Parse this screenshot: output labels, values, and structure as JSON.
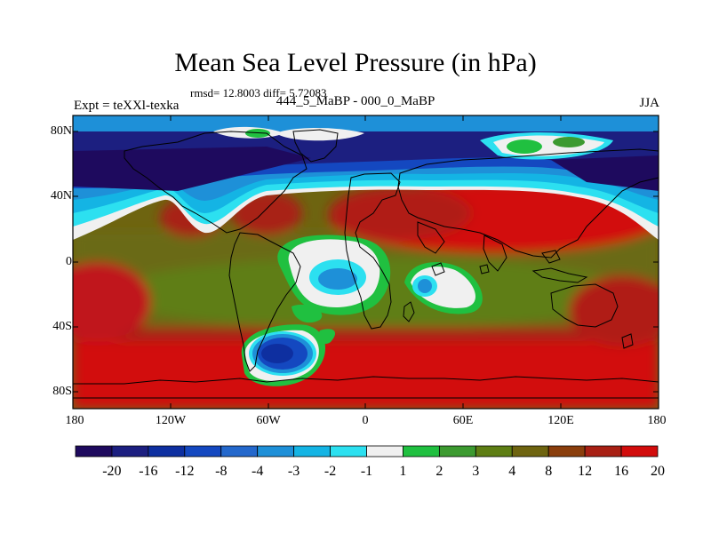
{
  "title": "Mean Sea Level Pressure (in hPa)",
  "stats_line": "rmsd= 12.8003 diff= 5.72083",
  "experiment_label": "Expt = teXXl-texka",
  "subtitle": "444_5_MaBP - 000_0_MaBP",
  "season": "JJA",
  "map": {
    "lat_ticks": [
      "80N",
      "40N",
      "0",
      "40S",
      "80S"
    ],
    "lon_ticks": [
      "180",
      "120W",
      "60W",
      "0",
      "60E",
      "120E",
      "180"
    ]
  },
  "colorbar": {
    "labels": [
      "-20",
      "-16",
      "-12",
      "-8",
      "-4",
      "-3",
      "-2",
      "-1",
      "1",
      "2",
      "3",
      "4",
      "8",
      "12",
      "16",
      "20"
    ],
    "colors": [
      "#1e0a5e",
      "#1c1f80",
      "#0e2fa0",
      "#1448c0",
      "#2468cc",
      "#1e90d8",
      "#14b4e4",
      "#2ce0f0",
      "#f0f0f0",
      "#20c040",
      "#3c9a30",
      "#5e7e14",
      "#6e6410",
      "#8a3e0c",
      "#a82014",
      "#d20c0c"
    ]
  },
  "palette": {
    "low_deep": "#1c1f80",
    "low_mid": "#1448c0",
    "high_moderate": "#6e6410",
    "high_strong": "#d20c0c"
  }
}
